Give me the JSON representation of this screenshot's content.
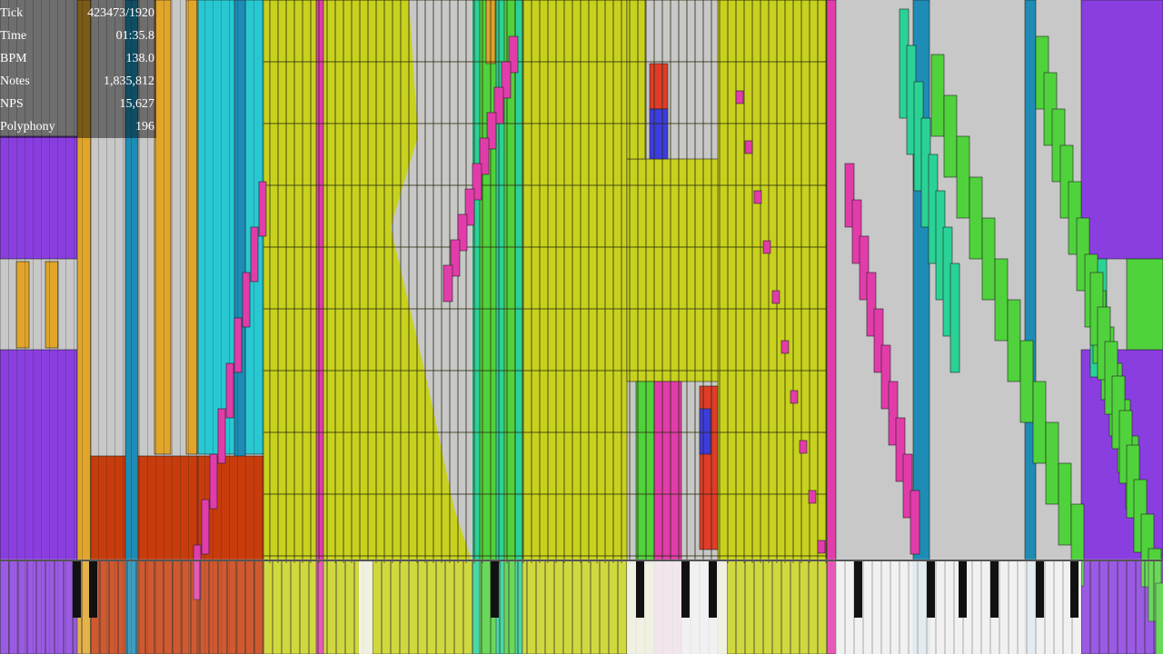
{
  "stats": [
    {
      "label": "Tick",
      "value": "423473/1920"
    },
    {
      "label": "Time",
      "value": "01:35.8"
    },
    {
      "label": "BPM",
      "value": "138.0"
    },
    {
      "label": "Notes",
      "value": "1,835,812"
    },
    {
      "label": "NPS",
      "value": "15,627"
    },
    {
      "label": "Polyphony",
      "value": "196"
    }
  ]
}
